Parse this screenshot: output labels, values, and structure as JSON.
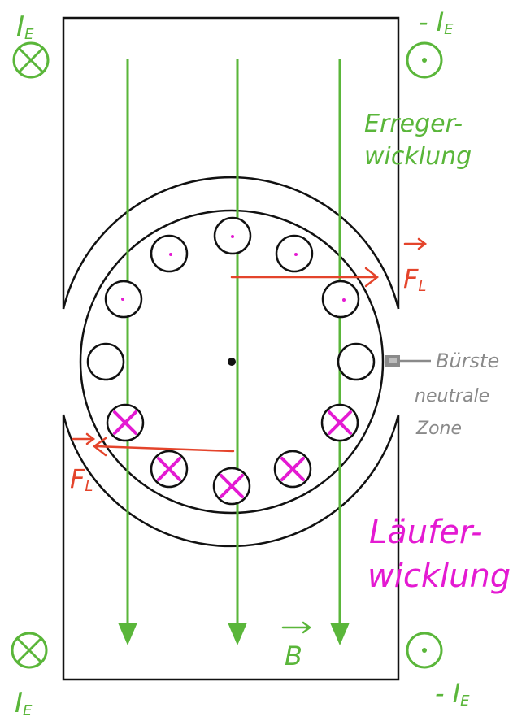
{
  "labels": {
    "ie_top_left": "I",
    "ie_top_left_sub": "E",
    "ie_top_right": "- I",
    "ie_top_right_sub": "E",
    "ie_bottom_left": "I",
    "ie_bottom_left_sub": "E",
    "ie_bottom_right": "- I",
    "ie_bottom_right_sub": "E",
    "erreger_line1": "Erreger-",
    "erreger_line2": "wicklung",
    "laeufer_line1": "Läufer-",
    "laeufer_line2": "wicklung",
    "buerste": "Bürste",
    "neutrale_line1": "neutrale",
    "neutrale_line2": "Zone",
    "force_right": "F",
    "force_right_sub": "L",
    "force_left": "F",
    "force_left_sub": "L",
    "field": "B"
  },
  "colors": {
    "field_lines": "#5ab63a",
    "force": "#e4442b",
    "current": "#e41ad2",
    "outline": "#111111",
    "brush": "#8a8a8a"
  },
  "icons": {
    "current_into": "circle-cross-icon",
    "current_out": "circle-dot-icon"
  }
}
